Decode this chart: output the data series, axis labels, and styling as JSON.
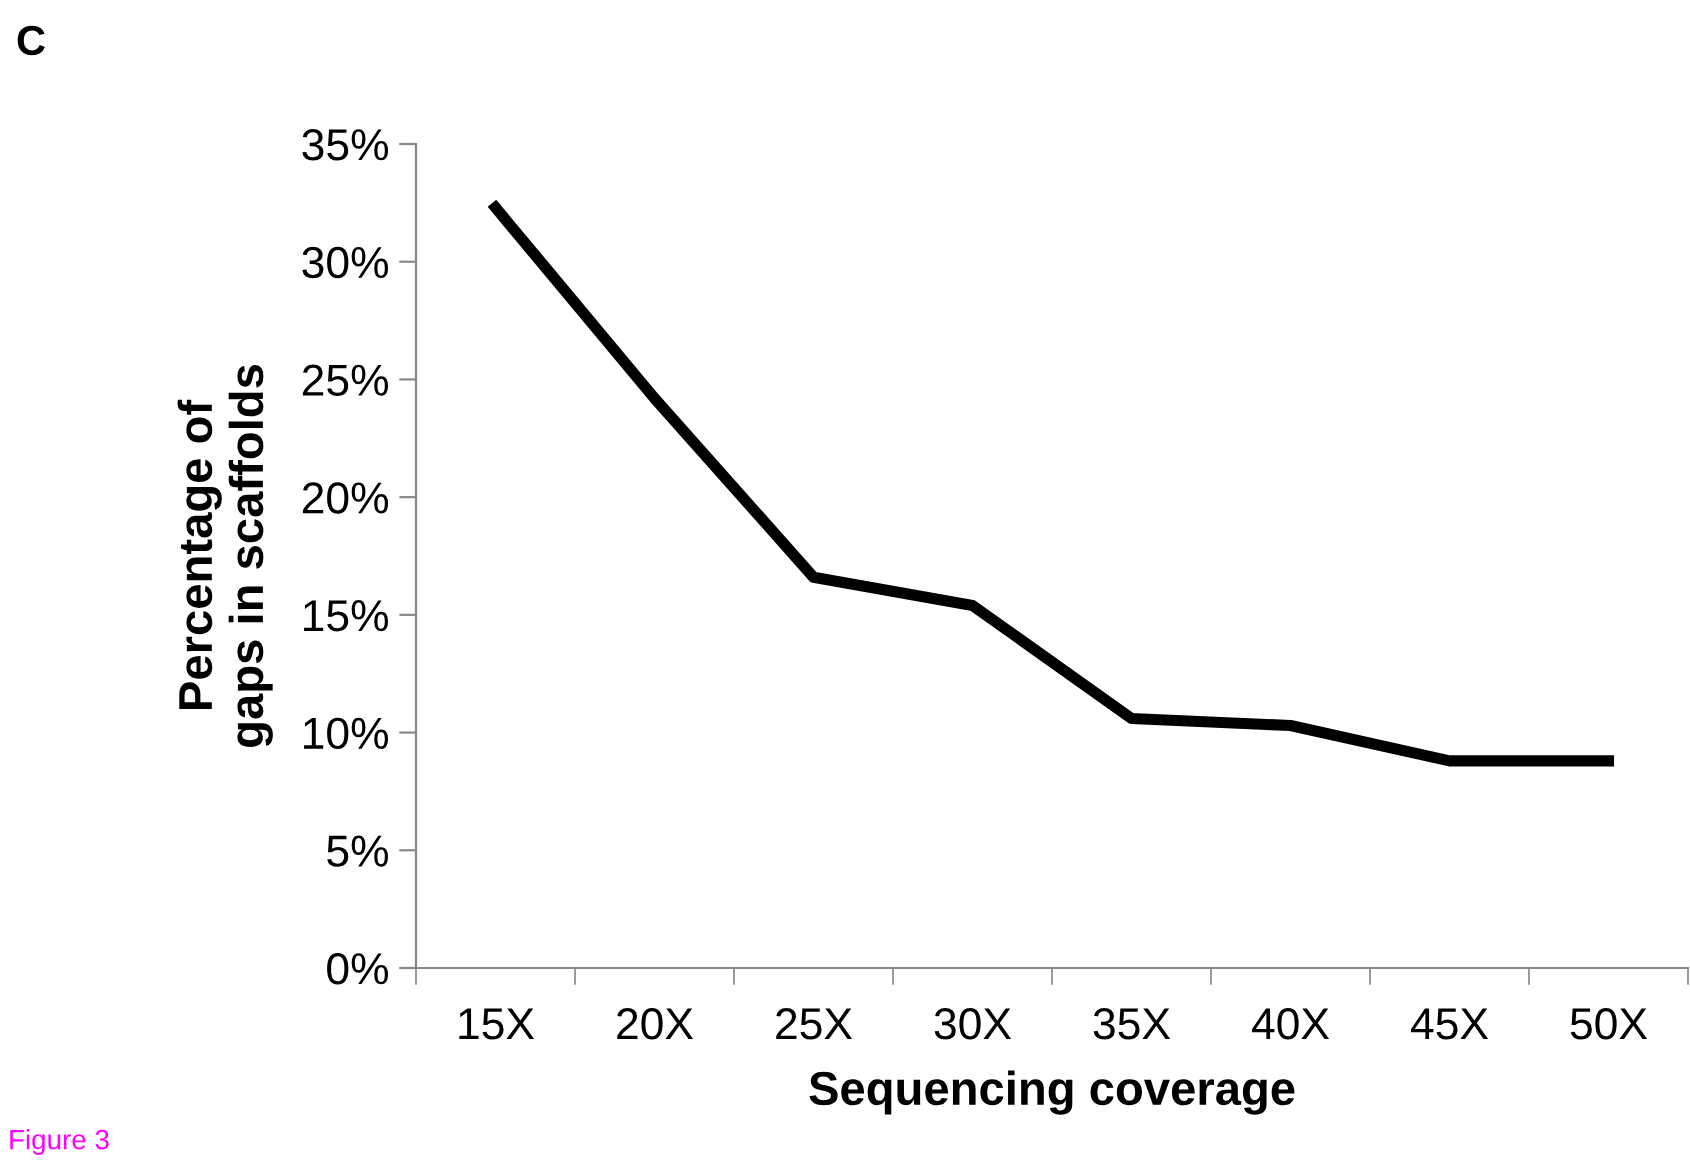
{
  "chart_data": {
    "type": "line",
    "xlabel": "Sequencing coverage",
    "ylabel": "Percentage of\ngaps in scaffolds",
    "categories": [
      "15X",
      "20X",
      "25X",
      "30X",
      "35X",
      "40X",
      "45X",
      "50X"
    ],
    "series": [
      {
        "color": "#000000",
        "values": [
          32.3,
          24.2,
          16.6,
          15.4,
          10.6,
          10.3,
          8.8,
          8.8
        ]
      }
    ],
    "ylim": [
      0,
      35
    ],
    "yticks": [
      {
        "value": 0,
        "label": "0%"
      },
      {
        "value": 5,
        "label": "5%"
      },
      {
        "value": 10,
        "label": "10%"
      },
      {
        "value": 15,
        "label": "15%"
      },
      {
        "value": 20,
        "label": "20%"
      },
      {
        "value": 25,
        "label": "25%"
      },
      {
        "value": 30,
        "label": "30%"
      },
      {
        "value": 35,
        "label": "35%"
      }
    ],
    "grid": false,
    "legend": false,
    "marker": "none",
    "line_style": "solid",
    "annotations": [
      "C",
      "Figure 3"
    ]
  }
}
